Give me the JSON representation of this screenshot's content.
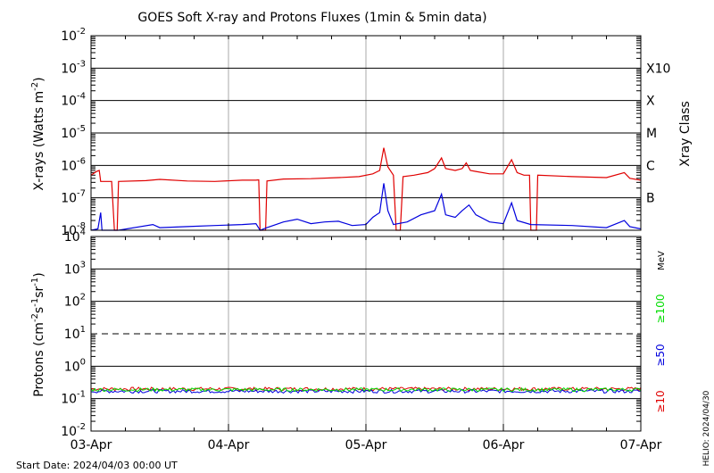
{
  "title": "GOES Soft X-ray and Protons Fluxes   (1min & 5min data)",
  "start_label": "Start Date: 2024/04/03 00:00 UT",
  "side_label": "HELIO: 2024/04/30",
  "colors": {
    "xray_long": "#e00000",
    "xray_short": "#0000dd",
    "p10": "#e00000",
    "p50": "#0000dd",
    "p100": "#00dd00",
    "grid_day": "#aaaaaa"
  },
  "chart_data": [
    {
      "type": "line",
      "name": "xray",
      "ylabel_main": "X-rays (Watts m",
      "ylabel_sup": "-2",
      "ylabel_close": ")",
      "yscale": "log",
      "ylim": [
        1e-08,
        0.01
      ],
      "y_ticks": [
        {
          "base": "10",
          "exp": "-8"
        },
        {
          "base": "10",
          "exp": "-7"
        },
        {
          "base": "10",
          "exp": "-6"
        },
        {
          "base": "10",
          "exp": "-5"
        },
        {
          "base": "10",
          "exp": "-4"
        },
        {
          "base": "10",
          "exp": "-3"
        },
        {
          "base": "10",
          "exp": "-2"
        }
      ],
      "class_axis_label": "Xray Class",
      "class_labels": [
        "B",
        "C",
        "M",
        "X",
        "X10"
      ],
      "xlim_days": [
        0,
        4
      ],
      "x_ticks": [
        "03-Apr",
        "04-Apr",
        "05-Apr",
        "06-Apr",
        "07-Apr"
      ],
      "series": [
        {
          "color": "#e00000",
          "points": [
            [
              0,
              5e-07
            ],
            [
              0.04,
              6.5e-07
            ],
            [
              0.06,
              7e-07
            ],
            [
              0.07,
              3.2e-07
            ],
            [
              0.15,
              3.2e-07
            ],
            [
              0.17,
              1e-08
            ],
            [
              0.19,
              1e-08
            ],
            [
              0.2,
              3.2e-07
            ],
            [
              0.4,
              3.4e-07
            ],
            [
              0.5,
              3.7e-07
            ],
            [
              0.7,
              3.3e-07
            ],
            [
              0.9,
              3.2e-07
            ],
            [
              1.1,
              3.5e-07
            ],
            [
              1.2,
              3.5e-07
            ],
            [
              1.22,
              3.6e-07
            ],
            [
              1.23,
              1e-08
            ],
            [
              1.27,
              1e-08
            ],
            [
              1.28,
              3.3e-07
            ],
            [
              1.4,
              3.8e-07
            ],
            [
              1.6,
              3.9e-07
            ],
            [
              1.8,
              4.2e-07
            ],
            [
              1.95,
              4.5e-07
            ],
            [
              2.05,
              5.5e-07
            ],
            [
              2.1,
              7e-07
            ],
            [
              2.13,
              3.5e-06
            ],
            [
              2.16,
              9e-07
            ],
            [
              2.2,
              5e-07
            ],
            [
              2.22,
              1e-08
            ],
            [
              2.25,
              1e-08
            ],
            [
              2.27,
              4.5e-07
            ],
            [
              2.35,
              5e-07
            ],
            [
              2.45,
              6e-07
            ],
            [
              2.5,
              8e-07
            ],
            [
              2.55,
              1.7e-06
            ],
            [
              2.58,
              8e-07
            ],
            [
              2.65,
              7e-07
            ],
            [
              2.7,
              8e-07
            ],
            [
              2.73,
              1.2e-06
            ],
            [
              2.76,
              7e-07
            ],
            [
              2.8,
              6.5e-07
            ],
            [
              2.9,
              5.5e-07
            ],
            [
              3.0,
              5.5e-07
            ],
            [
              3.06,
              1.5e-06
            ],
            [
              3.1,
              6e-07
            ],
            [
              3.15,
              5e-07
            ],
            [
              3.19,
              5e-07
            ],
            [
              3.2,
              1e-08
            ],
            [
              3.24,
              1e-08
            ],
            [
              3.25,
              5e-07
            ],
            [
              3.5,
              4.5e-07
            ],
            [
              3.75,
              4.2e-07
            ],
            [
              3.88,
              6e-07
            ],
            [
              3.92,
              4e-07
            ],
            [
              4.0,
              3.5e-07
            ]
          ]
        },
        {
          "color": "#0000dd",
          "points": [
            [
              0,
              1e-08
            ],
            [
              0.05,
              1.1e-08
            ],
            [
              0.07,
              3.5e-08
            ],
            [
              0.08,
              1e-08
            ],
            [
              0.2,
              1e-08
            ],
            [
              0.45,
              1.5e-08
            ],
            [
              0.5,
              1.2e-08
            ],
            [
              0.7,
              1.3e-08
            ],
            [
              0.9,
              1.4e-08
            ],
            [
              1.1,
              1.5e-08
            ],
            [
              1.2,
              1.6e-08
            ],
            [
              1.23,
              1e-08
            ],
            [
              1.28,
              1.2e-08
            ],
            [
              1.4,
              1.8e-08
            ],
            [
              1.5,
              2.2e-08
            ],
            [
              1.6,
              1.6e-08
            ],
            [
              1.7,
              1.8e-08
            ],
            [
              1.8,
              1.9e-08
            ],
            [
              1.9,
              1.4e-08
            ],
            [
              2.0,
              1.5e-08
            ],
            [
              2.05,
              2.5e-08
            ],
            [
              2.1,
              3.5e-08
            ],
            [
              2.13,
              2.8e-07
            ],
            [
              2.16,
              4e-08
            ],
            [
              2.2,
              1.5e-08
            ],
            [
              2.3,
              1.8e-08
            ],
            [
              2.4,
              3e-08
            ],
            [
              2.5,
              4e-08
            ],
            [
              2.55,
              1.3e-07
            ],
            [
              2.58,
              3e-08
            ],
            [
              2.65,
              2.5e-08
            ],
            [
              2.7,
              4e-08
            ],
            [
              2.75,
              6e-08
            ],
            [
              2.8,
              3e-08
            ],
            [
              2.9,
              1.8e-08
            ],
            [
              3.0,
              1.6e-08
            ],
            [
              3.06,
              7e-08
            ],
            [
              3.1,
              2e-08
            ],
            [
              3.2,
              1.5e-08
            ],
            [
              3.5,
              1.4e-08
            ],
            [
              3.75,
              1.2e-08
            ],
            [
              3.88,
              2e-08
            ],
            [
              3.92,
              1.3e-08
            ],
            [
              4.0,
              1.1e-08
            ]
          ]
        }
      ]
    },
    {
      "type": "line",
      "name": "protons",
      "ylabel_main": "Protons (cm",
      "ylabel_sup1": "-2",
      "ylabel_mid": "s",
      "ylabel_sup2": "-1",
      "ylabel_mid2": "sr",
      "ylabel_sup3": "-1",
      "ylabel_close": ")",
      "yscale": "log",
      "ylim": [
        0.01,
        10000
      ],
      "y_ticks": [
        {
          "base": "10",
          "exp": "-2"
        },
        {
          "base": "10",
          "exp": "-1"
        },
        {
          "base": "10",
          "exp": "0"
        },
        {
          "base": "10",
          "exp": "1"
        },
        {
          "base": "10",
          "exp": "2"
        },
        {
          "base": "10",
          "exp": "3"
        },
        {
          "base": "10",
          "exp": "4"
        }
      ],
      "threshold": 10,
      "unit_label": "MeV",
      "energy_labels": [
        "≥10",
        "≥50",
        "≥100"
      ],
      "xlim_days": [
        0,
        4
      ],
      "x_ticks": [
        "03-Apr",
        "04-Apr",
        "05-Apr",
        "06-Apr",
        "07-Apr"
      ],
      "series": [
        {
          "name": "≥10",
          "color": "#e00000",
          "level": 0.2
        },
        {
          "name": "≥50",
          "color": "#0000dd",
          "level": 0.17
        },
        {
          "name": "≥100",
          "color": "#00dd00",
          "level": 0.19
        }
      ]
    }
  ]
}
